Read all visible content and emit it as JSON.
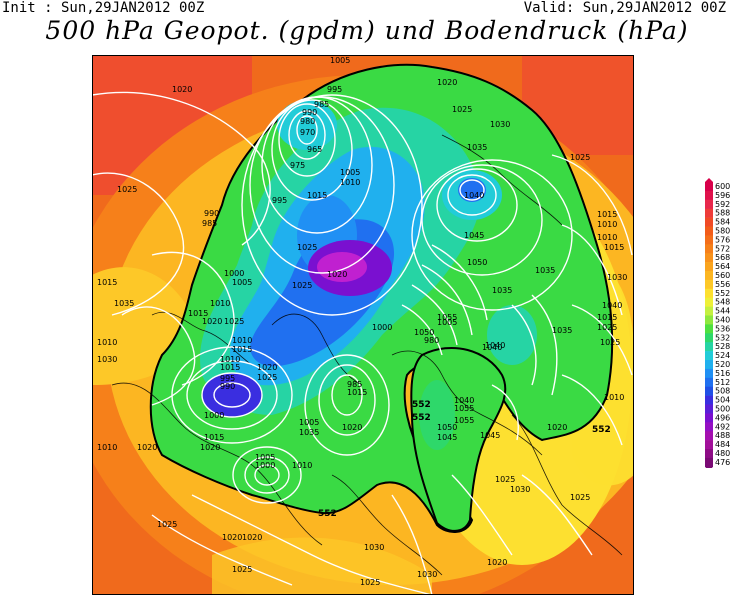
{
  "header": {
    "init": "Init : Sun,29JAN2012 00Z",
    "valid": "Valid: Sun,29JAN2012 00Z",
    "title": "500 hPa Geopot. (gpdm) und Bodendruck (hPa)"
  },
  "colorbar": {
    "levels": [
      "600",
      "596",
      "592",
      "588",
      "584",
      "580",
      "576",
      "572",
      "568",
      "564",
      "560",
      "556",
      "552",
      "548",
      "544",
      "540",
      "536",
      "532",
      "528",
      "524",
      "520",
      "516",
      "512",
      "508",
      "504",
      "500",
      "496",
      "492",
      "488",
      "484",
      "480",
      "476"
    ],
    "colors": [
      "#d8004a",
      "#e0124c",
      "#e8284c",
      "#ee3c3a",
      "#f04a26",
      "#f25c1a",
      "#f46e1a",
      "#f6801a",
      "#f8921c",
      "#faa41e",
      "#fcb622",
      "#fdc828",
      "#fde030",
      "#eef038",
      "#c4f040",
      "#8ee83e",
      "#4ee040",
      "#2ed86a",
      "#26d4a4",
      "#22ccd8",
      "#20b0ee",
      "#2090f4",
      "#2070f0",
      "#2050e6",
      "#3a2ee0",
      "#5a1ed8",
      "#7a10d0",
      "#9410c4",
      "#a410b0",
      "#a2109a",
      "#8e0c86",
      "#7a0a74"
    ]
  },
  "map": {
    "isobar_labels": [
      "1020",
      "1025",
      "1005",
      "1020",
      "985",
      "995",
      "990",
      "980",
      "970",
      "965",
      "975",
      "1005",
      "1010",
      "1015",
      "1030",
      "1025",
      "1035",
      "1040",
      "1045",
      "1050",
      "1055",
      "1040",
      "1035",
      "1010",
      "1015",
      "990",
      "985",
      "995",
      "1000",
      "1005",
      "1010",
      "1015",
      "1020",
      "1025",
      "1035",
      "1030",
      "1010",
      "1015",
      "1020",
      "1025",
      "1000",
      "1005",
      "990",
      "995",
      "1010",
      "1015",
      "1020",
      "1015",
      "1020",
      "1010",
      "1005",
      "1000",
      "1020",
      "1025",
      "1010",
      "1025",
      "1020",
      "1030",
      "1025",
      "1035",
      "1040",
      "1045",
      "1050",
      "1055",
      "1010",
      "1005",
      "1025",
      "1020",
      "1010",
      "1015",
      "1025",
      "1030",
      "1015",
      "1025",
      "1035",
      "1040",
      "1025",
      "1020",
      "1030",
      "1025",
      "1030",
      "1025",
      "1015",
      "1025",
      "1020",
      "1010",
      "1000",
      "1035",
      "1020",
      "1015",
      "985",
      "980",
      "1050",
      "1045",
      "1040",
      "1055",
      "1050"
    ],
    "contour_labels": [
      "552",
      "552",
      "552",
      "552"
    ]
  }
}
